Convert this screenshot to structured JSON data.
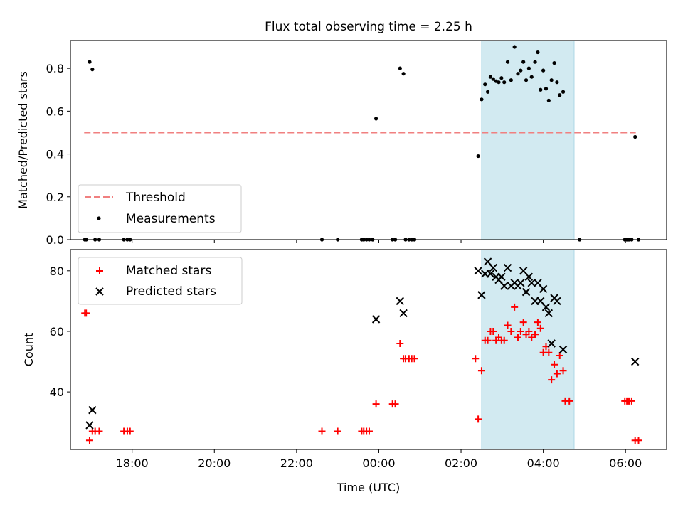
{
  "chart_data": [
    {
      "type": "scatter",
      "title": "Flux total observing time = 2.25 h",
      "xlabel": "",
      "ylabel": "Matched/Predicted stars",
      "xlim": [
        "16:30",
        "07:00"
      ],
      "ylim": [
        0,
        0.93
      ],
      "yticks": [
        0.0,
        0.2,
        0.4,
        0.6,
        0.8
      ],
      "ytick_labels": [
        "0.0",
        "0.2",
        "0.4",
        "0.6",
        "0.8"
      ],
      "highlight_span": {
        "x_start": "02:30",
        "x_end": "04:45",
        "color": "#add8e6"
      },
      "threshold": {
        "name": "Threshold",
        "y": 0.5,
        "x_start": "16:50",
        "x_end": "06:15",
        "color": "#f08080",
        "style": "dashed"
      },
      "legend": {
        "placement": "lower-left",
        "entries": [
          "Threshold",
          "Measurements"
        ]
      },
      "series": [
        {
          "name": "Measurements",
          "color": "#000000",
          "marker": "dot",
          "points": [
            {
              "x": "16:51",
              "y": 0.0
            },
            {
              "x": "16:53",
              "y": 0.0
            },
            {
              "x": "16:58",
              "y": 0.83
            },
            {
              "x": "17:02",
              "y": 0.795
            },
            {
              "x": "17:06",
              "y": 0.0
            },
            {
              "x": "17:12",
              "y": 0.0
            },
            {
              "x": "17:48",
              "y": 0.0
            },
            {
              "x": "17:53",
              "y": 0.0
            },
            {
              "x": "17:57",
              "y": 0.0
            },
            {
              "x": "22:37",
              "y": 0.0
            },
            {
              "x": "23:00",
              "y": 0.0
            },
            {
              "x": "23:35",
              "y": 0.0
            },
            {
              "x": "23:38",
              "y": 0.0
            },
            {
              "x": "23:42",
              "y": 0.0
            },
            {
              "x": "23:46",
              "y": 0.0
            },
            {
              "x": "23:51",
              "y": 0.0
            },
            {
              "x": "23:56",
              "y": 0.565
            },
            {
              "x": "00:20",
              "y": 0.0
            },
            {
              "x": "00:24",
              "y": 0.0
            },
            {
              "x": "00:31",
              "y": 0.8
            },
            {
              "x": "00:36",
              "y": 0.775
            },
            {
              "x": "00:39",
              "y": 0.0
            },
            {
              "x": "00:44",
              "y": 0.0
            },
            {
              "x": "00:48",
              "y": 0.0
            },
            {
              "x": "00:52",
              "y": 0.0
            },
            {
              "x": "02:25",
              "y": 0.39
            },
            {
              "x": "02:30",
              "y": 0.655
            },
            {
              "x": "02:35",
              "y": 0.725
            },
            {
              "x": "02:39",
              "y": 0.69
            },
            {
              "x": "02:43",
              "y": 0.76
            },
            {
              "x": "02:47",
              "y": 0.75
            },
            {
              "x": "02:51",
              "y": 0.74
            },
            {
              "x": "02:55",
              "y": 0.735
            },
            {
              "x": "02:59",
              "y": 0.755
            },
            {
              "x": "03:03",
              "y": 0.735
            },
            {
              "x": "03:08",
              "y": 0.83
            },
            {
              "x": "03:13",
              "y": 0.745
            },
            {
              "x": "03:18",
              "y": 0.9
            },
            {
              "x": "03:23",
              "y": 0.775
            },
            {
              "x": "03:27",
              "y": 0.79
            },
            {
              "x": "03:31",
              "y": 0.83
            },
            {
              "x": "03:35",
              "y": 0.745
            },
            {
              "x": "03:39",
              "y": 0.8
            },
            {
              "x": "03:43",
              "y": 0.76
            },
            {
              "x": "03:48",
              "y": 0.83
            },
            {
              "x": "03:52",
              "y": 0.875
            },
            {
              "x": "03:56",
              "y": 0.7
            },
            {
              "x": "04:00",
              "y": 0.79
            },
            {
              "x": "04:04",
              "y": 0.705
            },
            {
              "x": "04:08",
              "y": 0.65
            },
            {
              "x": "04:12",
              "y": 0.745
            },
            {
              "x": "04:16",
              "y": 0.825
            },
            {
              "x": "04:20",
              "y": 0.735
            },
            {
              "x": "04:24",
              "y": 0.675
            },
            {
              "x": "04:29",
              "y": 0.69
            },
            {
              "x": "04:53",
              "y": 0.0
            },
            {
              "x": "05:59",
              "y": 0.0
            },
            {
              "x": "06:02",
              "y": 0.0
            },
            {
              "x": "06:05",
              "y": 0.0
            },
            {
              "x": "06:09",
              "y": 0.0
            },
            {
              "x": "06:14",
              "y": 0.48
            },
            {
              "x": "06:19",
              "y": 0.0
            }
          ]
        }
      ]
    },
    {
      "type": "scatter",
      "title": "",
      "xlabel": "Time (UTC)",
      "ylabel": "Count",
      "xlim": [
        "16:30",
        "07:00"
      ],
      "ylim": [
        21,
        87
      ],
      "yticks": [
        40,
        60,
        80
      ],
      "ytick_labels": [
        "40",
        "60",
        "80"
      ],
      "xtick_labels": [
        "18:00",
        "20:00",
        "22:00",
        "00:00",
        "02:00",
        "04:00",
        "06:00"
      ],
      "highlight_span": {
        "x_start": "02:30",
        "x_end": "04:45",
        "color": "#add8e6"
      },
      "legend": {
        "placement": "upper-left",
        "entries": [
          "Matched stars",
          "Predicted stars"
        ]
      },
      "series": [
        {
          "name": "Matched stars",
          "color": "#ff0000",
          "marker": "plus",
          "points": [
            {
              "x": "16:51",
              "y": 66
            },
            {
              "x": "16:53",
              "y": 66
            },
            {
              "x": "16:58",
              "y": 24
            },
            {
              "x": "17:02",
              "y": 27
            },
            {
              "x": "17:06",
              "y": 27
            },
            {
              "x": "17:12",
              "y": 27
            },
            {
              "x": "17:48",
              "y": 27
            },
            {
              "x": "17:53",
              "y": 27
            },
            {
              "x": "17:57",
              "y": 27
            },
            {
              "x": "22:37",
              "y": 27
            },
            {
              "x": "23:00",
              "y": 27
            },
            {
              "x": "23:35",
              "y": 27
            },
            {
              "x": "23:38",
              "y": 27
            },
            {
              "x": "23:42",
              "y": 27
            },
            {
              "x": "23:46",
              "y": 27
            },
            {
              "x": "23:56",
              "y": 36
            },
            {
              "x": "00:20",
              "y": 36
            },
            {
              "x": "00:24",
              "y": 36
            },
            {
              "x": "00:31",
              "y": 56
            },
            {
              "x": "00:36",
              "y": 51
            },
            {
              "x": "00:39",
              "y": 51
            },
            {
              "x": "00:44",
              "y": 51
            },
            {
              "x": "00:48",
              "y": 51
            },
            {
              "x": "00:52",
              "y": 51
            },
            {
              "x": "02:21",
              "y": 51
            },
            {
              "x": "02:25",
              "y": 31
            },
            {
              "x": "02:30",
              "y": 47
            },
            {
              "x": "02:35",
              "y": 57
            },
            {
              "x": "02:39",
              "y": 57
            },
            {
              "x": "02:43",
              "y": 60
            },
            {
              "x": "02:47",
              "y": 60
            },
            {
              "x": "02:51",
              "y": 57
            },
            {
              "x": "02:55",
              "y": 58
            },
            {
              "x": "02:59",
              "y": 57
            },
            {
              "x": "03:03",
              "y": 57
            },
            {
              "x": "03:08",
              "y": 62
            },
            {
              "x": "03:13",
              "y": 60
            },
            {
              "x": "03:18",
              "y": 68
            },
            {
              "x": "03:23",
              "y": 58
            },
            {
              "x": "03:27",
              "y": 60
            },
            {
              "x": "03:31",
              "y": 63
            },
            {
              "x": "03:35",
              "y": 59
            },
            {
              "x": "03:39",
              "y": 60
            },
            {
              "x": "03:43",
              "y": 58
            },
            {
              "x": "03:48",
              "y": 59
            },
            {
              "x": "03:52",
              "y": 63
            },
            {
              "x": "03:56",
              "y": 61
            },
            {
              "x": "04:00",
              "y": 53
            },
            {
              "x": "04:04",
              "y": 55
            },
            {
              "x": "04:08",
              "y": 53
            },
            {
              "x": "04:12",
              "y": 44
            },
            {
              "x": "04:16",
              "y": 49
            },
            {
              "x": "04:20",
              "y": 46
            },
            {
              "x": "04:24",
              "y": 52
            },
            {
              "x": "04:29",
              "y": 47
            },
            {
              "x": "04:32",
              "y": 37
            },
            {
              "x": "04:38",
              "y": 37
            },
            {
              "x": "05:59",
              "y": 37
            },
            {
              "x": "06:02",
              "y": 37
            },
            {
              "x": "06:05",
              "y": 37
            },
            {
              "x": "06:09",
              "y": 37
            },
            {
              "x": "06:14",
              "y": 24
            },
            {
              "x": "06:19",
              "y": 24
            }
          ]
        },
        {
          "name": "Predicted stars",
          "color": "#000000",
          "marker": "x",
          "points": [
            {
              "x": "16:58",
              "y": 29
            },
            {
              "x": "17:02",
              "y": 34
            },
            {
              "x": "23:56",
              "y": 64
            },
            {
              "x": "00:31",
              "y": 70
            },
            {
              "x": "00:36",
              "y": 66
            },
            {
              "x": "02:25",
              "y": 80
            },
            {
              "x": "02:30",
              "y": 72
            },
            {
              "x": "02:35",
              "y": 79
            },
            {
              "x": "02:39",
              "y": 83
            },
            {
              "x": "02:43",
              "y": 79
            },
            {
              "x": "02:47",
              "y": 81
            },
            {
              "x": "02:51",
              "y": 78
            },
            {
              "x": "02:55",
              "y": 77
            },
            {
              "x": "02:59",
              "y": 78
            },
            {
              "x": "03:03",
              "y": 75
            },
            {
              "x": "03:08",
              "y": 81
            },
            {
              "x": "03:13",
              "y": 75
            },
            {
              "x": "03:18",
              "y": 76
            },
            {
              "x": "03:23",
              "y": 75
            },
            {
              "x": "03:27",
              "y": 76
            },
            {
              "x": "03:31",
              "y": 80
            },
            {
              "x": "03:35",
              "y": 73
            },
            {
              "x": "03:39",
              "y": 78
            },
            {
              "x": "03:43",
              "y": 76
            },
            {
              "x": "03:48",
              "y": 70
            },
            {
              "x": "03:52",
              "y": 76
            },
            {
              "x": "03:56",
              "y": 70
            },
            {
              "x": "04:00",
              "y": 74
            },
            {
              "x": "04:04",
              "y": 68
            },
            {
              "x": "04:08",
              "y": 66
            },
            {
              "x": "04:12",
              "y": 56
            },
            {
              "x": "04:16",
              "y": 71
            },
            {
              "x": "04:20",
              "y": 70
            },
            {
              "x": "04:29",
              "y": 54
            },
            {
              "x": "06:14",
              "y": 50
            }
          ]
        }
      ]
    }
  ]
}
